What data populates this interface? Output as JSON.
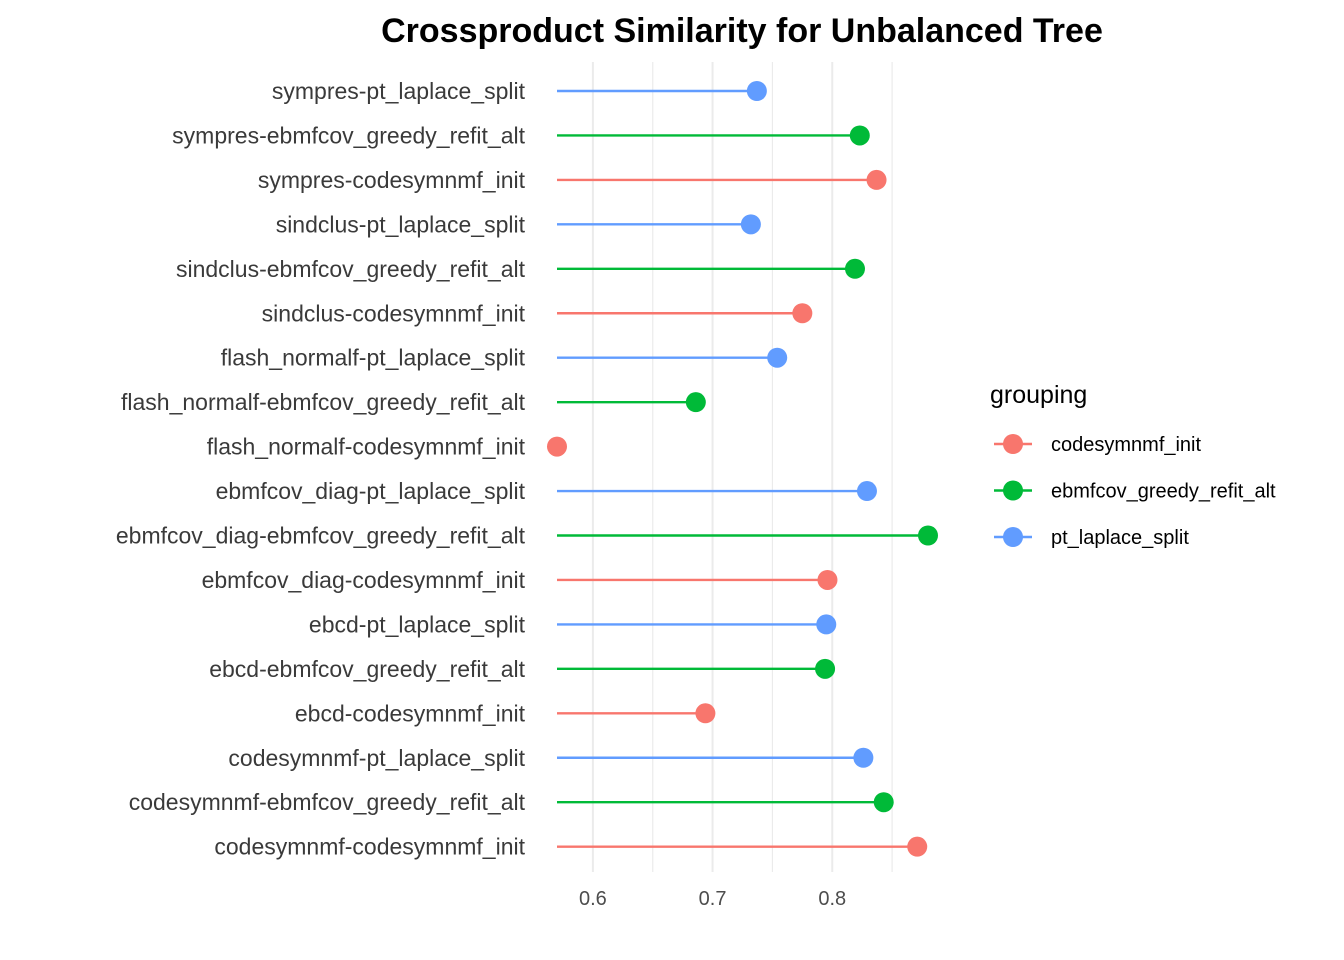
{
  "chart_data": {
    "type": "lollipop",
    "title": "Crossproduct Similarity for Unbalanced Tree",
    "xlabel": "",
    "ylabel": "",
    "xlim": [
      0.57,
      0.88
    ],
    "x_ticks": [
      0.6,
      0.7,
      0.8
    ],
    "x_tick_labels": [
      "0.6",
      "0.7",
      "0.8"
    ],
    "baseline": 0.57,
    "grid": "vertical",
    "legend": {
      "title": "grouping",
      "placement": "right",
      "entries": [
        "codesymnmf_init",
        "ebmfcov_greedy_refit_alt",
        "pt_laplace_split"
      ]
    },
    "colors": {
      "codesymnmf_init": "#F8766D",
      "ebmfcov_greedy_refit_alt": "#00BA38",
      "pt_laplace_split": "#619CFF"
    },
    "points": [
      {
        "label": "sympres-pt_laplace_split",
        "group": "pt_laplace_split",
        "value": 0.737
      },
      {
        "label": "sympres-ebmfcov_greedy_refit_alt",
        "group": "ebmfcov_greedy_refit_alt",
        "value": 0.823
      },
      {
        "label": "sympres-codesymnmf_init",
        "group": "codesymnmf_init",
        "value": 0.837
      },
      {
        "label": "sindclus-pt_laplace_split",
        "group": "pt_laplace_split",
        "value": 0.732
      },
      {
        "label": "sindclus-ebmfcov_greedy_refit_alt",
        "group": "ebmfcov_greedy_refit_alt",
        "value": 0.819
      },
      {
        "label": "sindclus-codesymnmf_init",
        "group": "codesymnmf_init",
        "value": 0.775
      },
      {
        "label": "flash_normalf-pt_laplace_split",
        "group": "pt_laplace_split",
        "value": 0.754
      },
      {
        "label": "flash_normalf-ebmfcov_greedy_refit_alt",
        "group": "ebmfcov_greedy_refit_alt",
        "value": 0.686
      },
      {
        "label": "flash_normalf-codesymnmf_init",
        "group": "codesymnmf_init",
        "value": 0.57
      },
      {
        "label": "ebmfcov_diag-pt_laplace_split",
        "group": "pt_laplace_split",
        "value": 0.829
      },
      {
        "label": "ebmfcov_diag-ebmfcov_greedy_refit_alt",
        "group": "ebmfcov_greedy_refit_alt",
        "value": 0.88
      },
      {
        "label": "ebmfcov_diag-codesymnmf_init",
        "group": "codesymnmf_init",
        "value": 0.796
      },
      {
        "label": "ebcd-pt_laplace_split",
        "group": "pt_laplace_split",
        "value": 0.795
      },
      {
        "label": "ebcd-ebmfcov_greedy_refit_alt",
        "group": "ebmfcov_greedy_refit_alt",
        "value": 0.794
      },
      {
        "label": "ebcd-codesymnmf_init",
        "group": "codesymnmf_init",
        "value": 0.694
      },
      {
        "label": "codesymnmf-pt_laplace_split",
        "group": "pt_laplace_split",
        "value": 0.826
      },
      {
        "label": "codesymnmf-ebmfcov_greedy_refit_alt",
        "group": "ebmfcov_greedy_refit_alt",
        "value": 0.843
      },
      {
        "label": "codesymnmf-codesymnmf_init",
        "group": "codesymnmf_init",
        "value": 0.871
      }
    ]
  }
}
